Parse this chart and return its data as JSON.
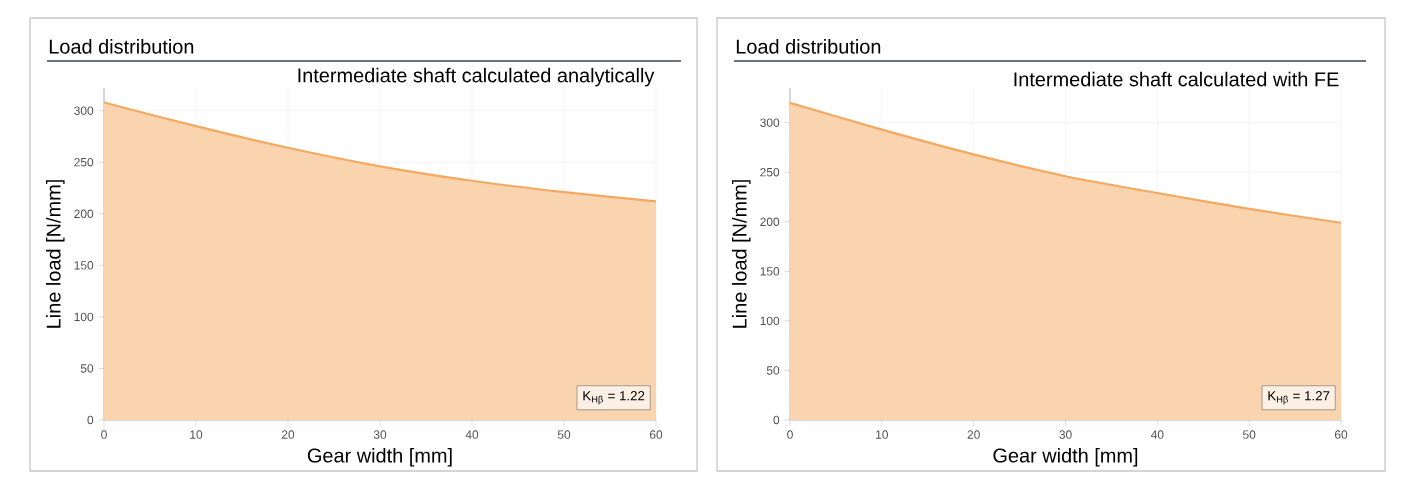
{
  "chart_data": [
    {
      "type": "area",
      "title": "Load distribution",
      "subtitle": "Intermediate shaft calculated analytically",
      "xlabel": "Gear width [mm]",
      "ylabel": "Line load [N/mm]",
      "x": [
        0,
        10,
        20,
        30,
        40,
        50,
        60
      ],
      "series": [
        {
          "color": "#f5a85f",
          "values": [
            308,
            285,
            264,
            246,
            232,
            221,
            212
          ]
        }
      ],
      "xlim": [
        0,
        60
      ],
      "ylim": [
        0,
        322
      ],
      "xticks": [
        0,
        10,
        20,
        30,
        40,
        50,
        60
      ],
      "yticks": [
        0,
        50,
        100,
        150,
        200,
        250,
        300
      ],
      "grid": true,
      "annotations": [
        "K$_{Hβ}$ = 1.22"
      ]
    },
    {
      "type": "area",
      "title": "Load distribution",
      "subtitle": "Intermediate shaft calculated with FE",
      "xlabel": "Gear width [mm]",
      "ylabel": "Line load [N/mm]",
      "x": [
        0,
        10,
        20,
        30,
        40,
        50,
        60
      ],
      "series": [
        {
          "color": "#f5a85f",
          "values": [
            320,
            293,
            268,
            246,
            229,
            213,
            199
          ]
        }
      ],
      "xlim": [
        0,
        60
      ],
      "ylim": [
        0,
        335
      ],
      "xticks": [
        0,
        10,
        20,
        30,
        40,
        50,
        60
      ],
      "yticks": [
        0,
        50,
        100,
        150,
        200,
        250,
        300
      ],
      "grid": true,
      "annotations": [
        "K$_{Hβ}$ = 1.27"
      ]
    }
  ]
}
